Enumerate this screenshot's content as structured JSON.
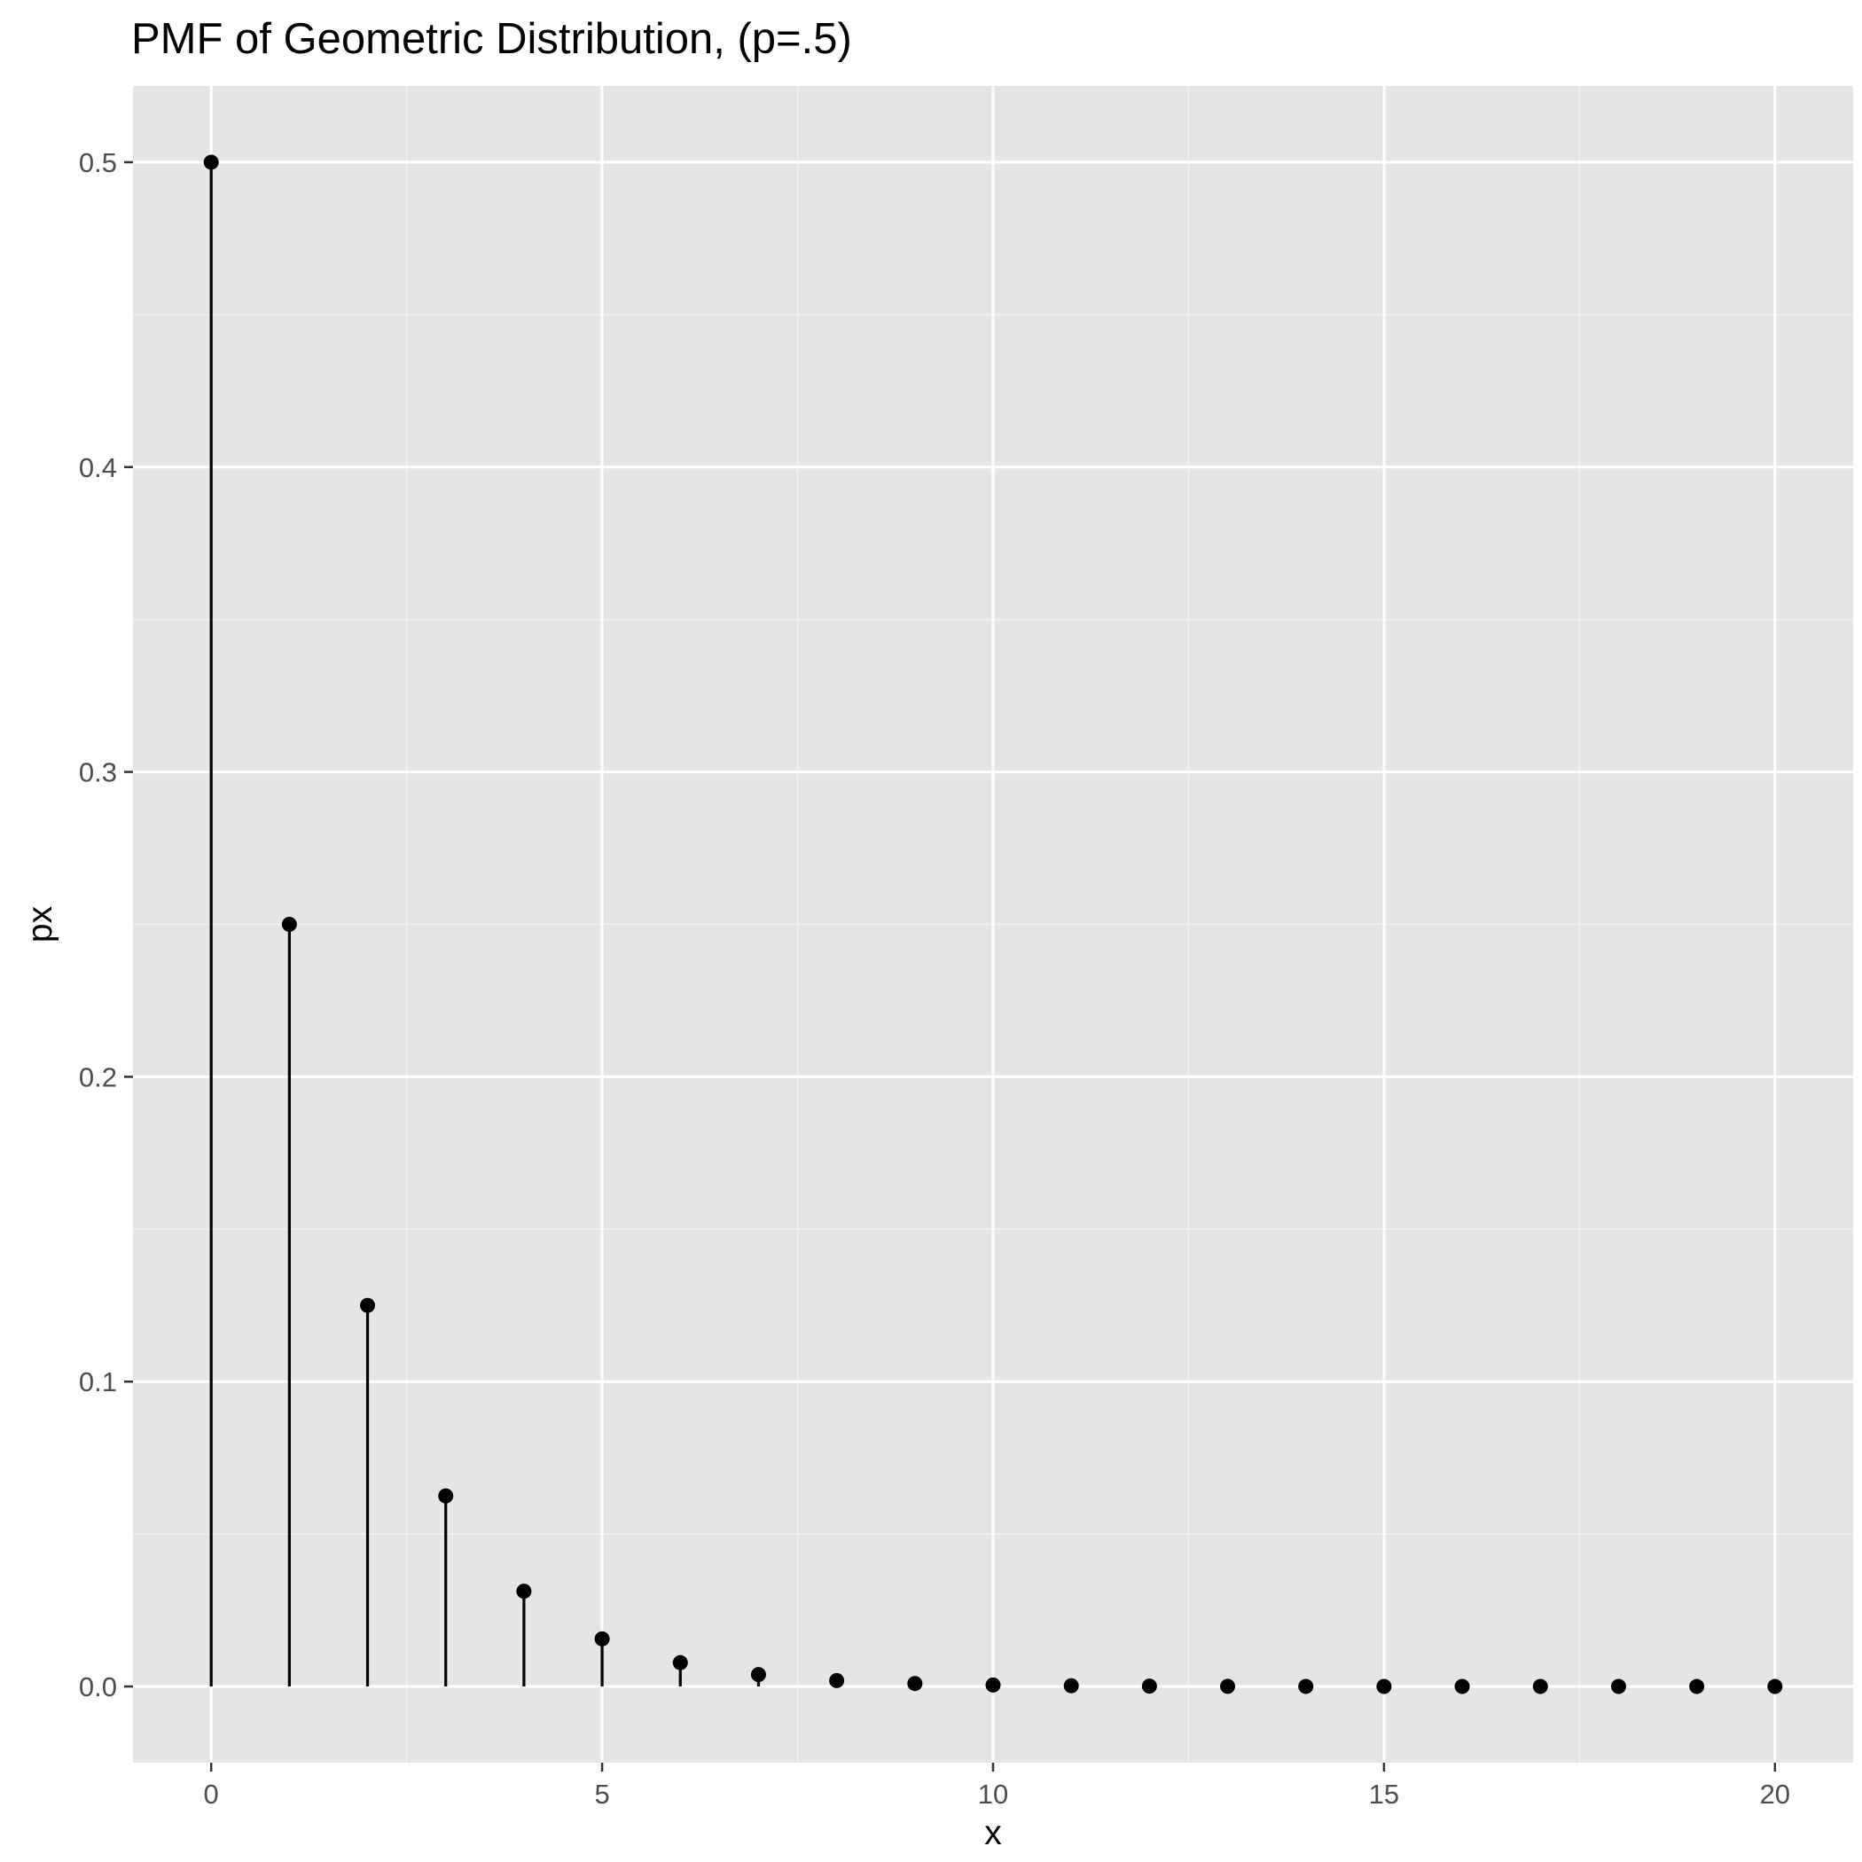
{
  "chart_data": {
    "type": "scatter",
    "style": "lollipop",
    "title": "PMF of Geometric Distribution, (p=.5)",
    "xlabel": "x",
    "ylabel": "px",
    "x": [
      0,
      1,
      2,
      3,
      4,
      5,
      6,
      7,
      8,
      9,
      10,
      11,
      12,
      13,
      14,
      15,
      16,
      17,
      18,
      19,
      20
    ],
    "y": [
      0.5,
      0.25,
      0.125,
      0.0625,
      0.03125,
      0.015625,
      0.0078125,
      0.00390625,
      0.001953125,
      0.0009765625,
      0.00048828125,
      0.000244140625,
      0.0001220703125,
      6.103515625e-05,
      3.0517578125e-05,
      1.52587890625e-05,
      7.62939453125e-06,
      3.814697265625e-06,
      1.9073486328125e-06,
      9.5367431640625e-07,
      4.76837158203125e-07
    ],
    "xlim": [
      -1,
      21
    ],
    "ylim": [
      -0.025,
      0.525
    ],
    "x_ticks": [
      0,
      5,
      10,
      15,
      20
    ],
    "x_tick_labels": [
      "0",
      "5",
      "10",
      "15",
      "20"
    ],
    "y_ticks": [
      0,
      0.1,
      0.2,
      0.3,
      0.4,
      0.5
    ],
    "y_tick_labels": [
      "0.0",
      "0.1",
      "0.2",
      "0.3",
      "0.4",
      "0.5"
    ],
    "x_minor_ticks": [
      2.5,
      7.5,
      12.5,
      17.5
    ],
    "y_minor_ticks": [
      0.05,
      0.15,
      0.25,
      0.35,
      0.45
    ],
    "grid": true,
    "legend": "none",
    "colors": {
      "panel_background": "#e5e5e5",
      "grid_major": "#ffffff",
      "grid_minor": "#f2f2f2",
      "mark": "#000000",
      "tick": "#333333",
      "tick_label": "#4d4d4d",
      "text": "#000000"
    }
  }
}
